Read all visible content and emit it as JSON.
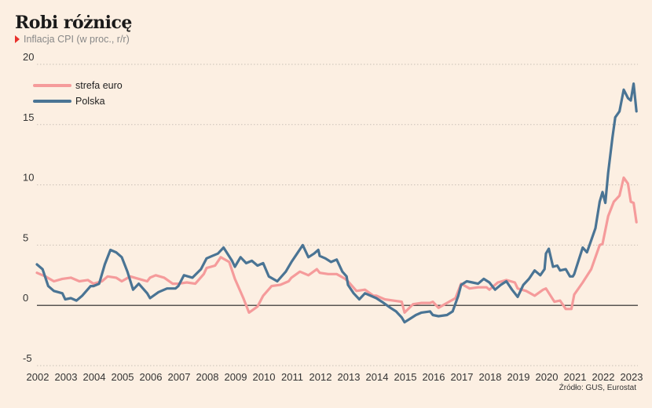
{
  "title": "Robi różnicę",
  "subtitle": "Inflacja CPI (w proc., r/r)",
  "source": "Źródło: GUS, Eurostat",
  "chart_data": {
    "type": "line",
    "xlim": [
      2002,
      2023.25
    ],
    "ylim": [
      -5,
      20
    ],
    "yticks": [
      -5,
      0,
      5,
      10,
      15,
      20
    ],
    "xticks": [
      2002,
      2003,
      2004,
      2005,
      2006,
      2007,
      2008,
      2009,
      2010,
      2011,
      2012,
      2013,
      2014,
      2015,
      2016,
      2017,
      2018,
      2019,
      2020,
      2021,
      2022,
      2023
    ],
    "grid": "horizontal",
    "legend_position": "top-left",
    "series": [
      {
        "name": "strefa euro",
        "color": "#f59b9b",
        "points": [
          [
            2002.0,
            2.7
          ],
          [
            2002.3,
            2.4
          ],
          [
            2002.6,
            2.0
          ],
          [
            2002.9,
            2.2
          ],
          [
            2003.2,
            2.3
          ],
          [
            2003.5,
            2.0
          ],
          [
            2003.8,
            2.1
          ],
          [
            2004.0,
            1.8
          ],
          [
            2004.3,
            2.0
          ],
          [
            2004.5,
            2.4
          ],
          [
            2004.8,
            2.3
          ],
          [
            2005.0,
            2.0
          ],
          [
            2005.3,
            2.4
          ],
          [
            2005.6,
            2.2
          ],
          [
            2005.9,
            2.0
          ],
          [
            2006.0,
            2.3
          ],
          [
            2006.2,
            2.5
          ],
          [
            2006.5,
            2.3
          ],
          [
            2006.8,
            1.8
          ],
          [
            2007.0,
            1.8
          ],
          [
            2007.3,
            1.9
          ],
          [
            2007.6,
            1.8
          ],
          [
            2007.9,
            2.6
          ],
          [
            2008.0,
            3.1
          ],
          [
            2008.3,
            3.3
          ],
          [
            2008.5,
            4.0
          ],
          [
            2008.8,
            3.6
          ],
          [
            2009.0,
            2.2
          ],
          [
            2009.3,
            0.6
          ],
          [
            2009.5,
            -0.6
          ],
          [
            2009.8,
            -0.1
          ],
          [
            2010.0,
            0.8
          ],
          [
            2010.3,
            1.6
          ],
          [
            2010.6,
            1.7
          ],
          [
            2010.9,
            2.0
          ],
          [
            2011.0,
            2.3
          ],
          [
            2011.3,
            2.8
          ],
          [
            2011.6,
            2.5
          ],
          [
            2011.9,
            3.0
          ],
          [
            2012.0,
            2.7
          ],
          [
            2012.3,
            2.6
          ],
          [
            2012.6,
            2.6
          ],
          [
            2012.9,
            2.2
          ],
          [
            2013.0,
            2.0
          ],
          [
            2013.3,
            1.2
          ],
          [
            2013.6,
            1.3
          ],
          [
            2013.9,
            0.8
          ],
          [
            2014.0,
            0.8
          ],
          [
            2014.3,
            0.5
          ],
          [
            2014.6,
            0.4
          ],
          [
            2014.9,
            0.3
          ],
          [
            2015.0,
            -0.6
          ],
          [
            2015.3,
            0.1
          ],
          [
            2015.6,
            0.2
          ],
          [
            2015.9,
            0.2
          ],
          [
            2016.0,
            0.3
          ],
          [
            2016.2,
            -0.2
          ],
          [
            2016.5,
            0.2
          ],
          [
            2016.8,
            0.6
          ],
          [
            2017.0,
            1.8
          ],
          [
            2017.3,
            1.4
          ],
          [
            2017.6,
            1.5
          ],
          [
            2017.9,
            1.5
          ],
          [
            2018.0,
            1.3
          ],
          [
            2018.3,
            1.9
          ],
          [
            2018.6,
            2.1
          ],
          [
            2018.9,
            1.9
          ],
          [
            2019.0,
            1.4
          ],
          [
            2019.3,
            1.2
          ],
          [
            2019.6,
            0.8
          ],
          [
            2019.9,
            1.3
          ],
          [
            2020.0,
            1.4
          ],
          [
            2020.3,
            0.3
          ],
          [
            2020.5,
            0.4
          ],
          [
            2020.7,
            -0.3
          ],
          [
            2020.9,
            -0.3
          ],
          [
            2021.0,
            0.9
          ],
          [
            2021.3,
            1.9
          ],
          [
            2021.6,
            3.0
          ],
          [
            2021.9,
            5.0
          ],
          [
            2022.0,
            5.1
          ],
          [
            2022.2,
            7.4
          ],
          [
            2022.4,
            8.6
          ],
          [
            2022.6,
            9.1
          ],
          [
            2022.75,
            10.6
          ],
          [
            2022.9,
            10.1
          ],
          [
            2023.0,
            8.6
          ],
          [
            2023.1,
            8.5
          ],
          [
            2023.2,
            6.9
          ]
        ]
      },
      {
        "name": "Polska",
        "color": "#4a7494",
        "points": [
          [
            2002.0,
            3.4
          ],
          [
            2002.2,
            3.0
          ],
          [
            2002.4,
            1.6
          ],
          [
            2002.6,
            1.2
          ],
          [
            2002.9,
            1.0
          ],
          [
            2003.0,
            0.5
          ],
          [
            2003.2,
            0.6
          ],
          [
            2003.4,
            0.4
          ],
          [
            2003.6,
            0.8
          ],
          [
            2003.9,
            1.6
          ],
          [
            2004.0,
            1.6
          ],
          [
            2004.2,
            1.8
          ],
          [
            2004.4,
            3.4
          ],
          [
            2004.6,
            4.6
          ],
          [
            2004.8,
            4.4
          ],
          [
            2005.0,
            4.0
          ],
          [
            2005.2,
            2.8
          ],
          [
            2005.4,
            1.3
          ],
          [
            2005.6,
            1.8
          ],
          [
            2005.9,
            1.0
          ],
          [
            2006.0,
            0.6
          ],
          [
            2006.3,
            1.1
          ],
          [
            2006.6,
            1.4
          ],
          [
            2006.9,
            1.4
          ],
          [
            2007.0,
            1.6
          ],
          [
            2007.2,
            2.5
          ],
          [
            2007.5,
            2.3
          ],
          [
            2007.8,
            3.0
          ],
          [
            2008.0,
            3.9
          ],
          [
            2008.2,
            4.1
          ],
          [
            2008.4,
            4.3
          ],
          [
            2008.6,
            4.8
          ],
          [
            2008.9,
            3.7
          ],
          [
            2009.0,
            3.2
          ],
          [
            2009.2,
            4.0
          ],
          [
            2009.4,
            3.5
          ],
          [
            2009.6,
            3.7
          ],
          [
            2009.8,
            3.3
          ],
          [
            2010.0,
            3.5
          ],
          [
            2010.2,
            2.4
          ],
          [
            2010.5,
            2.0
          ],
          [
            2010.8,
            2.8
          ],
          [
            2011.0,
            3.6
          ],
          [
            2011.2,
            4.3
          ],
          [
            2011.4,
            5.0
          ],
          [
            2011.6,
            4.0
          ],
          [
            2011.8,
            4.3
          ],
          [
            2011.95,
            4.6
          ],
          [
            2012.0,
            4.1
          ],
          [
            2012.2,
            3.9
          ],
          [
            2012.4,
            3.6
          ],
          [
            2012.6,
            3.8
          ],
          [
            2012.8,
            2.8
          ],
          [
            2012.95,
            2.4
          ],
          [
            2013.0,
            1.7
          ],
          [
            2013.2,
            1.0
          ],
          [
            2013.4,
            0.5
          ],
          [
            2013.6,
            1.0
          ],
          [
            2013.8,
            0.8
          ],
          [
            2014.0,
            0.6
          ],
          [
            2014.2,
            0.3
          ],
          [
            2014.5,
            -0.2
          ],
          [
            2014.7,
            -0.5
          ],
          [
            2014.9,
            -1.0
          ],
          [
            2015.0,
            -1.4
          ],
          [
            2015.2,
            -1.1
          ],
          [
            2015.4,
            -0.8
          ],
          [
            2015.6,
            -0.6
          ],
          [
            2015.9,
            -0.5
          ],
          [
            2016.0,
            -0.8
          ],
          [
            2016.2,
            -0.9
          ],
          [
            2016.5,
            -0.8
          ],
          [
            2016.7,
            -0.5
          ],
          [
            2016.9,
            0.8
          ],
          [
            2017.0,
            1.7
          ],
          [
            2017.2,
            2.0
          ],
          [
            2017.4,
            1.9
          ],
          [
            2017.6,
            1.8
          ],
          [
            2017.8,
            2.2
          ],
          [
            2018.0,
            1.9
          ],
          [
            2018.2,
            1.3
          ],
          [
            2018.4,
            1.7
          ],
          [
            2018.6,
            2.0
          ],
          [
            2018.8,
            1.3
          ],
          [
            2019.0,
            0.7
          ],
          [
            2019.2,
            1.7
          ],
          [
            2019.4,
            2.2
          ],
          [
            2019.6,
            2.9
          ],
          [
            2019.8,
            2.5
          ],
          [
            2019.95,
            3.0
          ],
          [
            2020.0,
            4.3
          ],
          [
            2020.1,
            4.7
          ],
          [
            2020.25,
            3.2
          ],
          [
            2020.4,
            3.3
          ],
          [
            2020.5,
            2.9
          ],
          [
            2020.7,
            3.0
          ],
          [
            2020.85,
            2.4
          ],
          [
            2020.95,
            2.4
          ],
          [
            2021.0,
            2.6
          ],
          [
            2021.15,
            3.7
          ],
          [
            2021.3,
            4.8
          ],
          [
            2021.45,
            4.4
          ],
          [
            2021.6,
            5.4
          ],
          [
            2021.75,
            6.4
          ],
          [
            2021.9,
            8.6
          ],
          [
            2022.0,
            9.4
          ],
          [
            2022.1,
            8.5
          ],
          [
            2022.2,
            11.0
          ],
          [
            2022.35,
            13.9
          ],
          [
            2022.45,
            15.6
          ],
          [
            2022.6,
            16.1
          ],
          [
            2022.75,
            17.9
          ],
          [
            2022.9,
            17.2
          ],
          [
            2023.0,
            17.0
          ],
          [
            2023.1,
            18.4
          ],
          [
            2023.2,
            16.1
          ]
        ]
      }
    ]
  }
}
